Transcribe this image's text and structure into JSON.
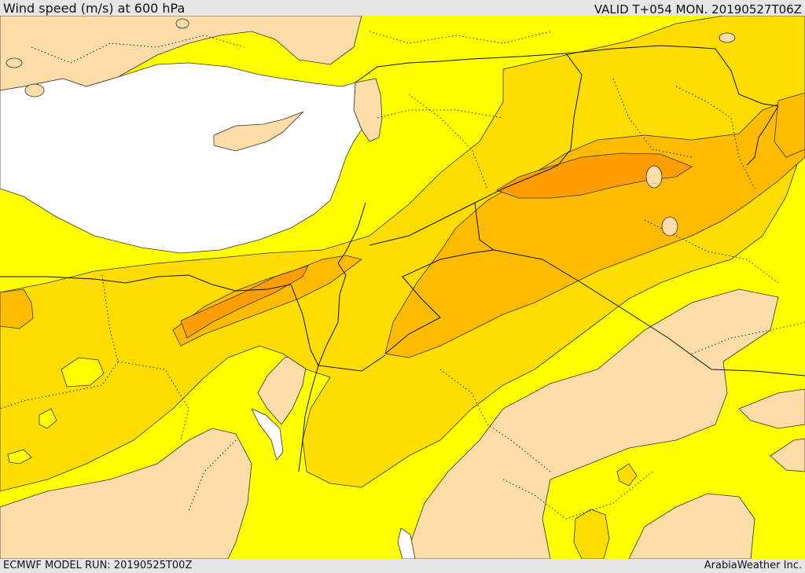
{
  "header": {
    "title": "Wind speed (m/s) at 600 hPa",
    "valid_time": "VALID T+054 MON. 20190527T06Z"
  },
  "footer": {
    "model_run": "ECMWF MODEL RUN: 20190525T00Z",
    "credit": "ArabiaWeather Inc."
  },
  "map": {
    "colors": {
      "sea": "#ffffff",
      "land_calm": "#ffdda8",
      "band_yellow": "#ffff00",
      "band_gold": "#ffdd00",
      "band_amber": "#ffbb00",
      "band_orange": "#ff9e00",
      "contour": "#333333",
      "border": "#111111"
    }
  }
}
